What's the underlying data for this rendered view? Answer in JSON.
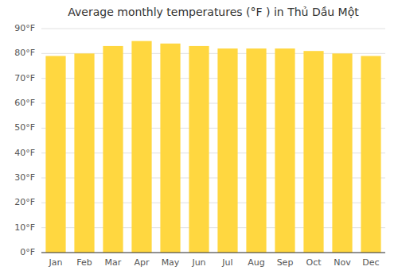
{
  "chart_data": {
    "type": "bar",
    "title": "Average monthly temperatures (°F ) in Thủ Dầu Một",
    "categories": [
      "Jan",
      "Feb",
      "Mar",
      "Apr",
      "May",
      "Jun",
      "Jul",
      "Aug",
      "Sep",
      "Oct",
      "Nov",
      "Dec"
    ],
    "values": [
      79,
      80,
      83,
      85,
      84,
      83,
      82,
      82,
      82,
      81,
      80,
      79
    ],
    "color": "#FFD740",
    "ylim": [
      0,
      90
    ],
    "yticks": [
      {
        "value": 0,
        "label": "0°F"
      },
      {
        "value": 10,
        "label": "10°F"
      },
      {
        "value": 20,
        "label": "20°F"
      },
      {
        "value": 30,
        "label": "30°F"
      },
      {
        "value": 40,
        "label": "40°F"
      },
      {
        "value": 50,
        "label": "50°F"
      },
      {
        "value": 60,
        "label": "60°F"
      },
      {
        "value": 70,
        "label": "70°F"
      },
      {
        "value": 80,
        "label": "80°F"
      },
      {
        "value": 90,
        "label": "90°F"
      }
    ],
    "grid": true
  }
}
